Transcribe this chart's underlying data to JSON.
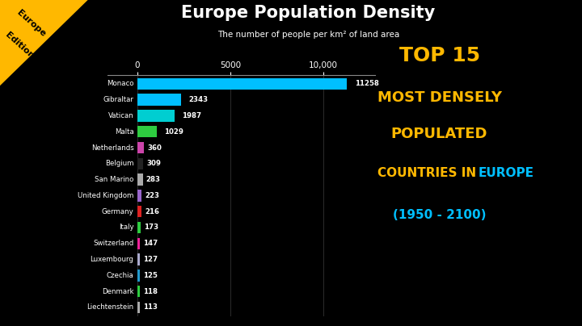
{
  "title": "Europe Population Density",
  "subtitle": "The number of people per km² of land area",
  "bg_color": "#000000",
  "text_color": "#FFFFFF",
  "countries": [
    "Monaco",
    "Gibraltar",
    "Vatican",
    "Malta",
    "Netherlands",
    "Belgium",
    "San Marino",
    "United Kingdom",
    "Germany",
    "Italy",
    "Switzerland",
    "Luxembourg",
    "Czechia",
    "Denmark",
    "Liechtenstein"
  ],
  "values": [
    11258,
    2343,
    1987,
    1029,
    360,
    309,
    283,
    223,
    216,
    173,
    147,
    127,
    125,
    118,
    113
  ],
  "bar_colors": [
    "#00BFFF",
    "#00BFFF",
    "#00CED1",
    "#2ECC40",
    "#CC44AA",
    "#222222",
    "#AAAAAA",
    "#9966CC",
    "#DD2222",
    "#2ECC40",
    "#EE2299",
    "#AAAACC",
    "#2299CC",
    "#2ECC40",
    "#AAAAAA"
  ],
  "xlim_max": 12800,
  "xticks": [
    0,
    5000,
    10000
  ],
  "xtick_labels": [
    "0",
    "5000",
    "10,000"
  ],
  "yellow_color": "#FFB800",
  "cyan_color": "#00BFFF",
  "corner_label_line1": "Europe",
  "corner_label_line2": "Edition"
}
